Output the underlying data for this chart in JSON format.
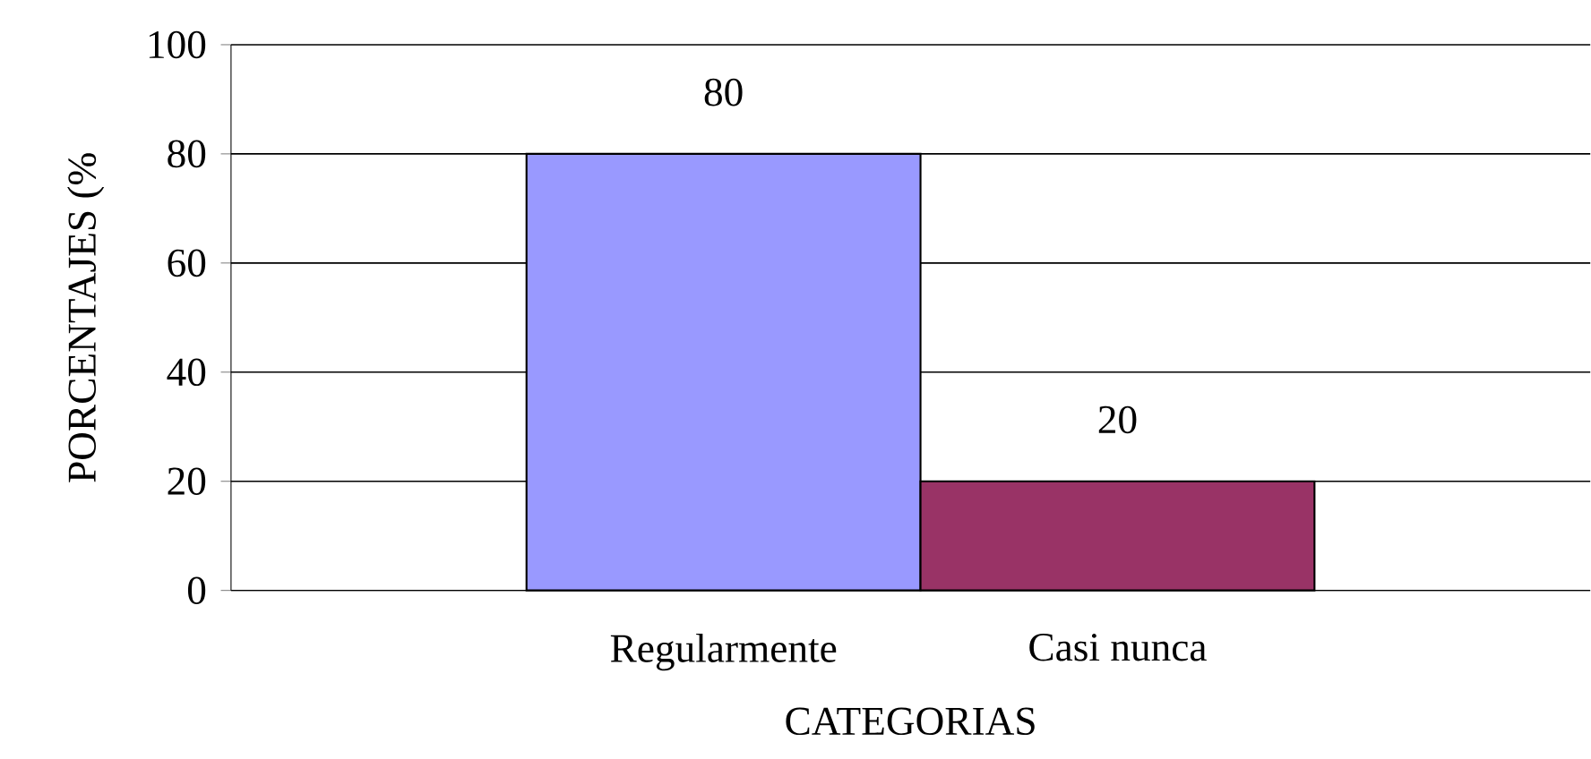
{
  "chart_data": {
    "type": "bar",
    "xlabel": "CATEGORIAS",
    "ylabel": "PORCENTAJES (%",
    "categories": [
      "Regularmente",
      "Casi nunca"
    ],
    "values": [
      80,
      20
    ],
    "colors": [
      "#9999ff",
      "#993366"
    ],
    "ylim": [
      0,
      100
    ],
    "yticks": [
      0,
      20,
      40,
      60,
      80,
      100
    ],
    "grid": "y",
    "data_labels": true
  }
}
